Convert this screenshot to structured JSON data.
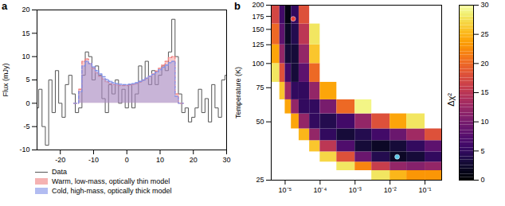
{
  "chart_data": [
    {
      "type": "line",
      "panel_label": "a",
      "y_label": "Flux (mJy)",
      "xlim": [
        -27,
        30
      ],
      "xticks": [
        -20,
        -10,
        0,
        10,
        20,
        30
      ],
      "ylim": [
        -10,
        20
      ],
      "yticks": [
        -10,
        -5,
        0,
        5,
        10,
        15,
        20
      ],
      "legend": "bottom",
      "series": [
        {
          "name": "Data",
          "type": "line",
          "line_style": "step",
          "color": "#555555",
          "x": [
            -27,
            -26,
            -25,
            -24,
            -23,
            -22,
            -21,
            -20,
            -19,
            -18,
            -17,
            -16,
            -15,
            -14,
            -13,
            -12,
            -11,
            -10,
            -9,
            -8,
            -7,
            -6,
            -5,
            -4,
            -3,
            -2,
            -1,
            0,
            1,
            2,
            3,
            4,
            5,
            6,
            7,
            8,
            9,
            10,
            11,
            12,
            13,
            14,
            15,
            16,
            17,
            18,
            19,
            20,
            21,
            22,
            23,
            24,
            25,
            26,
            27,
            28,
            29,
            30
          ],
          "values": [
            -1,
            3,
            -5,
            -9,
            5,
            -2,
            7,
            0,
            -3,
            4,
            6,
            2,
            -2,
            -1,
            6,
            11,
            10,
            5,
            8,
            6,
            1,
            -2,
            4,
            2,
            5,
            0,
            3,
            -1,
            4,
            -1,
            2,
            8,
            5,
            9,
            4,
            7,
            4,
            6,
            8,
            7,
            11,
            18,
            10,
            2,
            -2,
            -1,
            -4,
            -3,
            -1,
            3,
            -2,
            1,
            -4,
            4,
            -1,
            -3,
            5,
            6
          ]
        },
        {
          "name": "Warm, low-mass, optically thin model",
          "type": "area",
          "line_style": "dashed",
          "color": "#f08080",
          "x": [
            -16,
            -15,
            -14,
            -13,
            -12,
            -11,
            -10,
            -9,
            -8,
            -7,
            -6,
            -5,
            -4,
            -3,
            -2,
            -1,
            0,
            1,
            2,
            3,
            4,
            5,
            6,
            7,
            8,
            9,
            10,
            11,
            12,
            13,
            14,
            15,
            16,
            17
          ],
          "values": [
            0,
            0,
            3,
            9,
            9.5,
            8.5,
            7.5,
            6.5,
            5.8,
            5.2,
            4.6,
            4.2,
            4,
            3.9,
            3.8,
            3.8,
            3.8,
            3.9,
            4,
            4.2,
            4.5,
            4.9,
            5.3,
            5.8,
            6.3,
            6.9,
            7.5,
            8.2,
            9,
            9.8,
            10,
            2,
            0,
            0
          ]
        },
        {
          "name": "Cold, high-mass, optically thick model",
          "type": "area",
          "line_style": "dashed",
          "color": "#8090e8",
          "x": [
            -16,
            -15,
            -14,
            -13,
            -12,
            -11,
            -10,
            -9,
            -8,
            -7,
            -6,
            -5,
            -4,
            -3,
            -2,
            -1,
            0,
            1,
            2,
            3,
            4,
            5,
            6,
            7,
            8,
            9,
            10,
            11,
            12,
            13,
            14,
            15,
            16,
            17
          ],
          "values": [
            0,
            0,
            2.5,
            8,
            9,
            8.5,
            7.8,
            7,
            6.3,
            5.7,
            5.1,
            4.7,
            4.4,
            4.2,
            4.1,
            4,
            4,
            4.1,
            4.2,
            4.4,
            4.7,
            5,
            5.4,
            5.8,
            6.2,
            6.7,
            7.2,
            7.7,
            8.2,
            8.7,
            9,
            1.5,
            0,
            0
          ]
        }
      ]
    },
    {
      "type": "heatmap",
      "panel_label": "b",
      "y_label": "Temperature (K)",
      "log": true,
      "xlim": [
        4e-06,
        0.3
      ],
      "xticks": [
        {
          "value": 1e-05,
          "label": "10⁻⁵"
        },
        {
          "value": 0.0001,
          "label": "10⁻⁴"
        },
        {
          "value": 0.001,
          "label": "10⁻³"
        },
        {
          "value": 0.01,
          "label": "10⁻²"
        },
        {
          "value": 0.1,
          "label": "10⁻¹"
        }
      ],
      "ylim": [
        25,
        200
      ],
      "yticks": [
        25,
        50,
        75,
        100,
        125,
        150,
        175,
        200
      ],
      "x_edges": [
        4e-06,
        7e-06,
        1e-05,
        1.5e-05,
        2.5e-05,
        5e-05,
        0.0001,
        0.0003,
        0.001,
        0.003,
        0.01,
        0.03,
        0.1,
        0.3
      ],
      "y_edges": [
        25,
        28,
        31,
        35,
        40,
        46,
        55,
        65,
        80,
        100,
        125,
        160,
        200
      ],
      "cells": [
        [
          null,
          null,
          null,
          null,
          null,
          null,
          null,
          null,
          null,
          28,
          25,
          23,
          23
        ],
        [
          null,
          null,
          null,
          null,
          null,
          null,
          null,
          28,
          22,
          16,
          12,
          11,
          12
        ],
        [
          null,
          null,
          null,
          null,
          null,
          null,
          27,
          18,
          9,
          4,
          2,
          3,
          5
        ],
        [
          null,
          null,
          null,
          null,
          null,
          26,
          15,
          7,
          3,
          2,
          3,
          5,
          8
        ],
        [
          null,
          null,
          null,
          null,
          25,
          12,
          5,
          3,
          4,
          6,
          9,
          13,
          18
        ],
        [
          null,
          null,
          null,
          24,
          12,
          5,
          4,
          6,
          12,
          18,
          24,
          28,
          null
        ],
        [
          null,
          null,
          24,
          12,
          5,
          5,
          10,
          20,
          29,
          null,
          null,
          null,
          null
        ],
        [
          null,
          26,
          13,
          5,
          5,
          12,
          24,
          null,
          null,
          null,
          null,
          null,
          null
        ],
        [
          28,
          18,
          6,
          3,
          8,
          20,
          null,
          null,
          null,
          null,
          null,
          null,
          null
        ],
        [
          24,
          12,
          3,
          3,
          12,
          26,
          null,
          null,
          null,
          null,
          null,
          null,
          null
        ],
        [
          20,
          8,
          2,
          4,
          15,
          28,
          null,
          null,
          null,
          null,
          null,
          null,
          null
        ],
        [
          17,
          6,
          1,
          5,
          18,
          null,
          null,
          null,
          null,
          null,
          null,
          null,
          null
        ]
      ],
      "colorbar": {
        "label": "Δχ²",
        "range": [
          0,
          30
        ],
        "ticks": [
          0,
          5,
          10,
          15,
          20,
          25,
          30
        ]
      },
      "points": [
        {
          "x": 1.7e-05,
          "y": 170,
          "color": "#e8413c",
          "marker": "circle"
        },
        {
          "x": 0.016,
          "y": 33,
          "color": "#5bc8e8",
          "marker": "circle"
        }
      ]
    }
  ]
}
